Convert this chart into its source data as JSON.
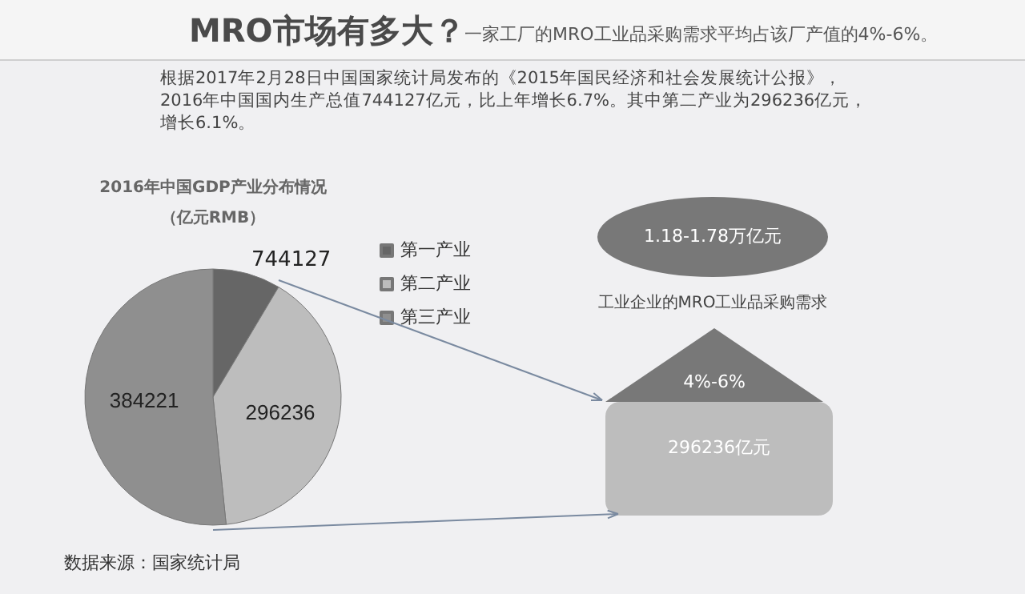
{
  "chart_data": {
    "type": "pie",
    "title": "MRO市场有多大？",
    "subtitle": "一家工厂的MRO工业品采购需求平均占该厂产值的4%-6%。",
    "categories": [
      "第一产业",
      "第二产业",
      "第三产业"
    ],
    "values": [
      63671,
      296236,
      384221
    ],
    "value_labels": [
      null,
      "296236",
      "384221"
    ],
    "colors": [
      "#666666",
      "#bdbdbd",
      "#8f8f8f"
    ],
    "legend": "top right",
    "annotations": [
      "根据2017年2月28日中国国家统计局发布的《2015年国民经济和社会发展统计公报》，2016年中国国内生产总值744127亿元，比上年增长6.7%。其中第二产业为296236亿元，增长6.1%。",
      "2016年中国GDP产业分布情况",
      "（亿元RMB）",
      "数据来源：国家统计局",
      "1.18-1.78万亿元",
      "工业企业的MRO工业品采购需求",
      "4%-6%",
      "296236亿元",
      "744127"
    ]
  }
}
